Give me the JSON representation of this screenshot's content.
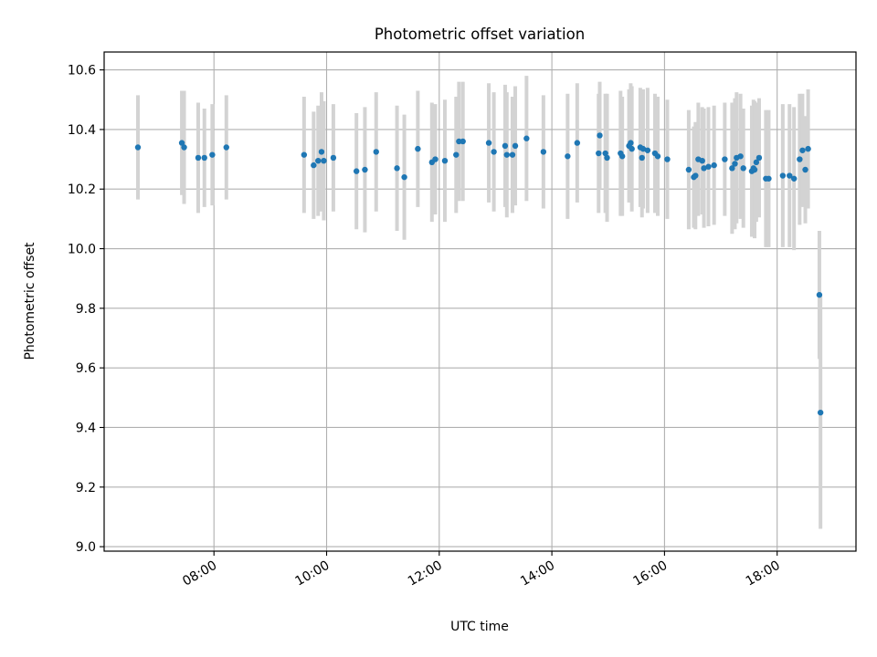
{
  "chart_data": {
    "type": "scatter",
    "title": "Photometric offset variation",
    "xlabel": "UTC time",
    "ylabel": "Photometric offset",
    "x_unit": "hours UTC",
    "xlim": [
      6.05,
      19.4
    ],
    "ylim": [
      8.985,
      10.66
    ],
    "yticks": [
      9.0,
      9.2,
      9.4,
      9.6,
      9.8,
      10.0,
      10.2,
      10.4,
      10.6
    ],
    "ytick_labels": [
      "9.0",
      "9.2",
      "9.4",
      "9.6",
      "9.8",
      "10.0",
      "10.2",
      "10.4",
      "10.6"
    ],
    "xticks": [
      8,
      10,
      12,
      14,
      16,
      18
    ],
    "xtick_labels": [
      "08:00",
      "10:00",
      "12:00",
      "14:00",
      "16:00",
      "18:00"
    ],
    "grid": true,
    "legend": false,
    "colors": {
      "point": "#1f77b4",
      "errorbar": "#d3d3d3",
      "grid": "#b0b0b0"
    },
    "series": [
      {
        "x": [
          6.65,
          7.43,
          7.47,
          7.72,
          7.83,
          7.97,
          8.22,
          9.6,
          9.77,
          9.85,
          9.91,
          9.95,
          10.12,
          10.53,
          10.68,
          10.88,
          11.25,
          11.38,
          11.62,
          11.87,
          11.93,
          12.1,
          12.3,
          12.35,
          12.42,
          12.88,
          12.97,
          13.17,
          13.2,
          13.3,
          13.35,
          13.55,
          13.85,
          14.28,
          14.45,
          14.83,
          14.85,
          14.95,
          14.98,
          15.22,
          15.25,
          15.37,
          15.4,
          15.42,
          15.57,
          15.6,
          15.62,
          15.7,
          15.83,
          15.88,
          16.05,
          16.43,
          16.52,
          16.55,
          16.6,
          16.67,
          16.7,
          16.78,
          16.88,
          17.07,
          17.2,
          17.25,
          17.28,
          17.35,
          17.4,
          17.55,
          17.58,
          17.6,
          17.63,
          17.68,
          17.8,
          17.85,
          18.1,
          18.22,
          18.3,
          18.4,
          18.45,
          18.5,
          18.55,
          18.75,
          18.77
        ],
        "y": [
          10.34,
          10.355,
          10.34,
          10.305,
          10.305,
          10.315,
          10.34,
          10.315,
          10.28,
          10.295,
          10.325,
          10.295,
          10.305,
          10.26,
          10.265,
          10.325,
          10.27,
          10.24,
          10.335,
          10.29,
          10.3,
          10.295,
          10.315,
          10.36,
          10.36,
          10.355,
          10.325,
          10.345,
          10.315,
          10.315,
          10.345,
          10.37,
          10.325,
          10.31,
          10.355,
          10.32,
          10.38,
          10.32,
          10.305,
          10.32,
          10.31,
          10.345,
          10.355,
          10.335,
          10.34,
          10.305,
          10.335,
          10.33,
          10.32,
          10.31,
          10.3,
          10.265,
          10.24,
          10.245,
          10.3,
          10.295,
          10.27,
          10.275,
          10.28,
          10.3,
          10.27,
          10.285,
          10.305,
          10.31,
          10.27,
          10.26,
          10.27,
          10.265,
          10.29,
          10.305,
          10.235,
          10.235,
          10.245,
          10.245,
          10.235,
          10.3,
          10.33,
          10.265,
          10.335,
          9.845,
          9.45
        ],
        "yerr": [
          0.175,
          0.175,
          0.19,
          0.185,
          0.165,
          0.17,
          0.175,
          0.195,
          0.18,
          0.185,
          0.2,
          0.2,
          0.18,
          0.195,
          0.21,
          0.2,
          0.21,
          0.21,
          0.195,
          0.2,
          0.185,
          0.205,
          0.195,
          0.2,
          0.2,
          0.2,
          0.2,
          0.205,
          0.21,
          0.195,
          0.2,
          0.21,
          0.19,
          0.21,
          0.2,
          0.2,
          0.18,
          0.2,
          0.215,
          0.21,
          0.2,
          0.19,
          0.2,
          0.21,
          0.2,
          0.2,
          0.2,
          0.21,
          0.2,
          0.2,
          0.2,
          0.2,
          0.17,
          0.18,
          0.19,
          0.18,
          0.2,
          0.2,
          0.2,
          0.19,
          0.22,
          0.22,
          0.22,
          0.21,
          0.2,
          0.22,
          0.23,
          0.23,
          0.2,
          0.2,
          0.23,
          0.23,
          0.24,
          0.24,
          0.24,
          0.22,
          0.19,
          0.18,
          0.2,
          0.215,
          0.39
        ]
      }
    ]
  }
}
